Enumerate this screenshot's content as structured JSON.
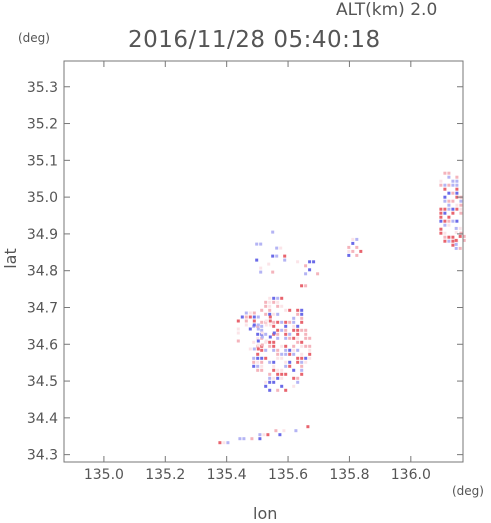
{
  "header": {
    "altitude_label": "ALT(km)",
    "altitude_value": "2.0",
    "datetime": "2016/11/28 05:40:18"
  },
  "chart_data": {
    "type": "heatmap",
    "title": "2016/11/28 05:40:18",
    "subtitle": "ALT(km) 2.0",
    "xlabel": "lon",
    "ylabel": "lat",
    "x_unit": "(deg)",
    "y_unit": "(deg)",
    "xlim": [
      134.87,
      136.17
    ],
    "ylim": [
      34.28,
      35.37
    ],
    "x_ticks": [
      135.0,
      135.2,
      135.4,
      135.6,
      135.8,
      136.0
    ],
    "x_tick_labels": [
      "135.0",
      "135.2",
      "135.4",
      "135.6",
      "135.8",
      "136.0"
    ],
    "y_ticks": [
      34.3,
      34.4,
      34.5,
      34.6,
      34.7,
      34.8,
      34.9,
      35.0,
      35.1,
      35.2,
      35.3
    ],
    "y_tick_labels": [
      "34.3",
      "34.4",
      "34.5",
      "34.6",
      "34.7",
      "34.8",
      "34.9",
      "35.0",
      "35.1",
      "35.2",
      "35.3"
    ],
    "grid": false,
    "colors": {
      "positive": "#e8646e",
      "negative": "#6a6ae8",
      "light_positive": "#f4b4bc",
      "light_negative": "#b4b4f4"
    },
    "clusters": [
      {
        "lon": [
          135.47,
          135.67
        ],
        "lat": [
          34.47,
          34.74
        ],
        "density": 0.55
      },
      {
        "lon": [
          135.42,
          135.56
        ],
        "lat": [
          34.58,
          34.7
        ],
        "density": 0.35
      },
      {
        "lon": [
          135.48,
          135.6
        ],
        "lat": [
          34.78,
          34.92
        ],
        "density": 0.18
      },
      {
        "lon": [
          135.6,
          135.7
        ],
        "lat": [
          34.76,
          34.85
        ],
        "density": 0.2
      },
      {
        "lon": [
          135.78,
          135.84
        ],
        "lat": [
          34.84,
          34.9
        ],
        "density": 0.3
      },
      {
        "lon": [
          136.08,
          136.17
        ],
        "lat": [
          34.87,
          35.08
        ],
        "density": 0.6
      },
      {
        "lon": [
          136.13,
          136.17
        ],
        "lat": [
          34.86,
          34.93
        ],
        "density": 0.8
      }
    ],
    "bands": [
      {
        "lon": [
          135.36,
          135.66
        ],
        "lat": [
          34.33,
          34.38
        ],
        "density": 0.5
      }
    ]
  }
}
